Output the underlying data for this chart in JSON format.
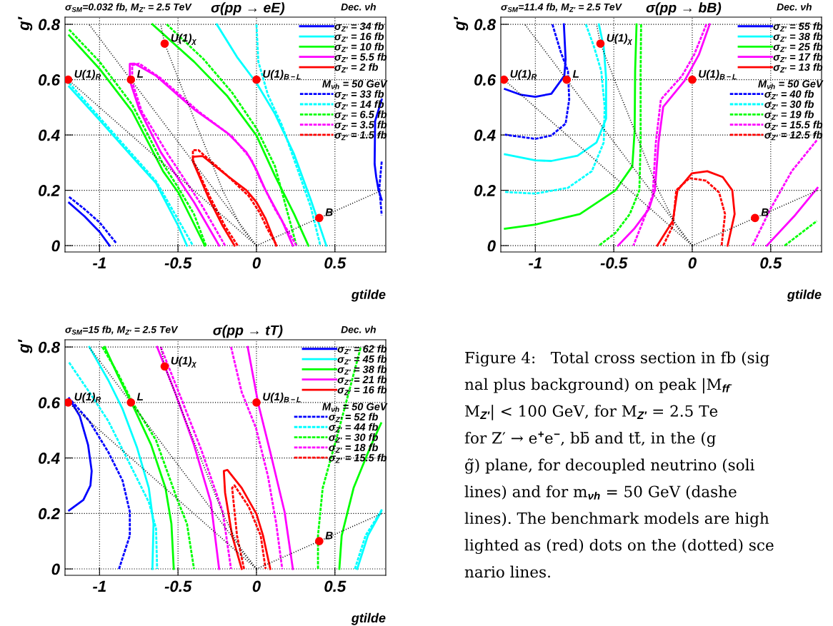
{
  "chart_data": [
    {
      "type": "line",
      "title": "σ(pp → eE)",
      "subtitle": "σ$_{SM}$=0.032 fb, M$_{Z′}$ = 2.5 TeV",
      "xlabel": "gtilde",
      "ylabel": "g′",
      "legend_title": "M$_{νh}$ = 50 GeV",
      "legend": "top right",
      "grid": true,
      "xlim": [
        -1.22,
        0.824
      ],
      "ylim": [
        -0.023,
        0.826
      ],
      "xticks": [
        {
          "value": -1,
          "label": "-1"
        },
        {
          "value": -0.5,
          "label": "-0.5"
        },
        {
          "value": 0,
          "label": "0"
        },
        {
          "value": 0.5,
          "label": "0.5"
        }
      ],
      "yticks": [
        0,
        0.2,
        0.4,
        0.6,
        0.8
      ],
      "annotations": [
        "Dec. νh",
        {
          "text": "U(1)$_{R}$",
          "x": -1.2,
          "y": 0.6
        },
        {
          "text": "L",
          "x": -0.8,
          "y": 0.6
        },
        {
          "text": "U(1)$_{χ}$",
          "x": -0.585,
          "y": 0.73
        },
        {
          "text": "U(1)$_{B−L}$",
          "x": 0,
          "y": 0.6
        },
        {
          "text": "B",
          "x": 0.4,
          "y": 0.1
        }
      ],
      "series": [
        {
          "type": "line",
          "name": "σ$_{Z′}$ = 34 fb",
          "color": "#0000ff",
          "line_style": "solid",
          "x": [
            -1.194,
            -1.096,
            -1.0,
            -0.936,
            null,
            0.798,
            0.756,
            0.753,
            0.763,
            0.778,
            0.798
          ],
          "values": [
            0.155,
            0.106,
            0.05,
            0,
            null,
            0.528,
            0.45,
            0.295,
            0.248,
            0.2,
            0.166
          ]
        },
        {
          "type": "line",
          "name": "σ$_{Z′}$ = 16 fb",
          "color": "#00ffff",
          "line_style": "solid",
          "x": [
            -1.194,
            -1.0,
            -0.792,
            -0.64,
            -0.498,
            -0.443,
            null,
            -0.253,
            -0.124,
            0,
            0.118,
            0.24,
            0.346,
            0.445
          ],
          "values": [
            0.575,
            0.454,
            0.321,
            0.226,
            0.071,
            0,
            null,
            0.8,
            0.682,
            0.588,
            0.476,
            0.33,
            0.166,
            0
          ]
        },
        {
          "type": "line",
          "name": "σ$_{Z′}$ = 10 fb",
          "color": "#00ff00",
          "line_style": "solid",
          "x": [
            -1.194,
            -1.0,
            -0.792,
            -0.595,
            -0.498,
            -0.329,
            null,
            -0.663,
            -0.398,
            -0.185,
            0,
            0.118,
            0.24,
            0.331
          ],
          "values": [
            0.76,
            0.639,
            0.485,
            0.269,
            0.192,
            0,
            null,
            0.8,
            0.665,
            0.54,
            0.398,
            0.252,
            0.114,
            0
          ]
        },
        {
          "type": "line",
          "name": "σ$_{Z′}$ = 5.5 fb",
          "color": "#ff00ff",
          "line_style": "solid",
          "x": [
            -0.238,
            -0.398,
            -0.61,
            -0.747,
            -0.807,
            -0.807,
            -0.777,
            -0.64,
            -0.398,
            -0.185,
            -0.064,
            0,
            0.058,
            0.164,
            0.232
          ],
          "values": [
            0,
            0.157,
            0.338,
            0.493,
            0.596,
            0.657,
            0.658,
            0.614,
            0.493,
            0.407,
            0.338,
            0.274,
            0.2,
            0.089,
            0
          ]
        },
        {
          "type": "line",
          "name": "σ$_{Z′}$ = 2 fb",
          "color": "#ff0000",
          "line_style": "solid",
          "x": [
            -0.14,
            -0.215,
            -0.307,
            -0.405,
            -0.405,
            -0.344,
            -0.185,
            -0.064,
            0,
            0.058,
            0.126
          ],
          "values": [
            0,
            0.071,
            0.175,
            0.304,
            0.321,
            0.324,
            0.252,
            0.2,
            0.157,
            0.097,
            0
          ]
        },
        {
          "type": "line",
          "name": "σ$_{Z′}$ = 33 fb",
          "color": "#0000ff",
          "line_style": "dashed",
          "x": [
            -1.194,
            -1.096,
            -1.0,
            -0.891,
            null,
            0.798,
            0.783,
            0.798
          ],
          "values": [
            0.176,
            0.132,
            0.084,
            0.007,
            null,
            0.304,
            0.209,
            0.11
          ]
        },
        {
          "type": "line",
          "name": "σ$_{Z′}$ = 14 fb",
          "color": "#00ffff",
          "line_style": "dashed",
          "x": [
            -1.194,
            -1.0,
            -0.792,
            -0.64,
            -0.498,
            -0.405,
            null,
            0,
            0.012,
            0.073,
            0.164,
            0.255,
            0.346,
            0.407
          ],
          "values": [
            0.588,
            0.463,
            0.33,
            0.233,
            0.093,
            0,
            null,
            0.8,
            0.665,
            0.545,
            0.433,
            0.287,
            0.14,
            0
          ]
        },
        {
          "type": "line",
          "name": "σ$_{Z′}$ = 6.5 fb",
          "color": "#00ff00",
          "line_style": "dashed",
          "x": [
            -1.194,
            -1.0,
            -0.792,
            -0.595,
            -0.498,
            -0.398,
            -0.322,
            null,
            -0.572,
            -0.337,
            -0.155,
            0,
            0.118,
            0.255
          ],
          "values": [
            0.781,
            0.665,
            0.51,
            0.295,
            0.209,
            0.114,
            0,
            null,
            0.8,
            0.674,
            0.553,
            0.424,
            0.287,
            0
          ]
        },
        {
          "type": "line",
          "name": "σ$_{Z′}$ = 3.5 fb",
          "color": "#ff00ff",
          "line_style": "dashed",
          "x": [
            -0.2,
            -0.352,
            -0.564,
            -0.731,
            -0.792,
            -0.792,
            -0.747,
            -0.61,
            -0.367,
            -0.155,
            -0.033,
            0.027,
            0.118,
            0.255
          ],
          "values": [
            0,
            0.149,
            0.33,
            0.485,
            0.592,
            0.652,
            0.658,
            0.605,
            0.484,
            0.394,
            0.312,
            0.235,
            0.132,
            0
          ]
        },
        {
          "type": "line",
          "name": "σ$_{Z′}$ = 1.5 fb",
          "color": "#ff0000",
          "line_style": "dashed",
          "x": [
            -0.12,
            -0.2,
            -0.3,
            -0.405,
            -0.405,
            -0.37,
            -0.2,
            -0.05,
            0.02,
            0.07,
            0.13
          ],
          "values": [
            0,
            0.07,
            0.18,
            0.31,
            0.345,
            0.345,
            0.26,
            0.18,
            0.12,
            0.06,
            0
          ]
        },
        {
          "type": "line",
          "color": "#000000",
          "line_style": "dotted",
          "x": [
            0,
            -1.2
          ],
          "values": [
            0,
            0.6
          ]
        },
        {
          "type": "line",
          "color": "#000000",
          "line_style": "dotted",
          "x": [
            0,
            -1.067
          ],
          "values": [
            0,
            0.8
          ]
        },
        {
          "type": "line",
          "color": "#000000",
          "line_style": "dotted",
          "x": [
            0,
            -0.094,
            -0.215,
            -0.337,
            -0.458,
            -0.585,
            -0.61
          ],
          "values": [
            0,
            0.063,
            0.2,
            0.373,
            0.545,
            0.73,
            0.8
          ]
        },
        {
          "type": "line",
          "color": "#000000",
          "line_style": "dotted",
          "x": [
            0,
            0.8
          ],
          "values": [
            0,
            0.2
          ]
        },
        {
          "type": "scatter",
          "color": "#ff0000",
          "marker": "circle",
          "x": [
            -1.2,
            -0.8,
            -0.585,
            0,
            0.4
          ],
          "values": [
            0.6,
            0.6,
            0.73,
            0.6,
            0.1
          ]
        }
      ]
    },
    {
      "type": "line",
      "title": "σ(pp → bB)",
      "subtitle": "σ$_{SM}$=11.4 fb, M$_{Z′}$ = 2.5 TeV",
      "xlabel": "gtilde",
      "ylabel": "g′",
      "legend_title": "M$_{νh}$ = 50 GeV",
      "legend": "top right",
      "grid": true,
      "xlim": [
        -1.22,
        0.824
      ],
      "ylim": [
        -0.023,
        0.826
      ],
      "xticks": [
        {
          "value": -1,
          "label": "-1"
        },
        {
          "value": -0.5,
          "label": "-0.5"
        },
        {
          "value": 0,
          "label": "0"
        },
        {
          "value": 0.5,
          "label": "0.5"
        }
      ],
      "yticks": [
        0,
        0.2,
        0.4,
        0.6,
        0.8
      ],
      "annotations": [
        "Dec. νh",
        {
          "text": "U(1)$_{R}$",
          "x": -1.2,
          "y": 0.6
        },
        {
          "text": "L",
          "x": -0.8,
          "y": 0.6
        },
        {
          "text": "U(1)$_{χ}$",
          "x": -0.585,
          "y": 0.73
        },
        {
          "text": "U(1)$_{B−L}$",
          "x": 0,
          "y": 0.6
        },
        {
          "text": "B",
          "x": 0.4,
          "y": 0.1
        }
      ],
      "series": [
        {
          "type": "line",
          "name": "σ$_{Z′}$ = 55 fb",
          "color": "#0000ff",
          "line_style": "solid",
          "x": [
            -0.818,
            -0.807,
            -0.815,
            -0.898,
            -1.0,
            -1.096,
            -1.194
          ],
          "values": [
            0.8,
            0.674,
            0.614,
            0.549,
            0.538,
            0.546,
            0.566
          ]
        },
        {
          "type": "line",
          "name": "σ$_{Z′}$ = 38 fb",
          "color": "#00ffff",
          "line_style": "solid",
          "x": [
            -0.595,
            -0.564,
            -0.549,
            -0.549,
            -0.61,
            -0.731,
            -0.898,
            -1.0,
            -1.194
          ],
          "values": [
            0.8,
            0.717,
            0.605,
            0.459,
            0.373,
            0.325,
            0.306,
            0.308,
            0.33
          ]
        },
        {
          "type": "line",
          "name": "σ$_{Z′}$ = 25 fb",
          "color": "#00ff00",
          "line_style": "solid",
          "x": [
            -0.355,
            -0.364,
            -0.367,
            -0.382,
            -0.489,
            -0.716,
            -1.0,
            -1.194
          ],
          "values": [
            0.8,
            0.631,
            0.416,
            0.287,
            0.2,
            0.114,
            0.076,
            0.061
          ]
        },
        {
          "type": "line",
          "name": "σ$_{Z′}$ = 17 fb",
          "color": "#ff00ff",
          "line_style": "solid",
          "x": [
            0.111,
            0.042,
            -0.049,
            -0.185,
            -0.215,
            -0.238,
            -0.276,
            -0.367,
            -0.473,
            null,
            0.475,
            0.649,
            0.798
          ],
          "values": [
            0.8,
            0.69,
            0.596,
            0.502,
            0.373,
            0.2,
            0.132,
            0.063,
            0,
            null,
            0,
            0.106,
            0.209
          ]
        },
        {
          "type": "line",
          "name": "σ$_{Z′}$ = 13 fb",
          "color": "#ff0000",
          "line_style": "solid",
          "x": [
            -0.223,
            -0.124,
            -0.094,
            -0.003,
            0.096,
            0.194,
            0.255,
            0.27,
            0.225
          ],
          "values": [
            0,
            0.089,
            0.2,
            0.261,
            0.269,
            0.248,
            0.2,
            0.114,
            0
          ]
        },
        {
          "type": "line",
          "name": "σ$_{Z′}$ = 40 fb",
          "color": "#0000ff",
          "line_style": "dashed",
          "x": [
            -0.891,
            -0.838,
            -0.792,
            -0.784,
            -0.807,
            -0.898,
            -1.0,
            -1.194
          ],
          "values": [
            0.8,
            0.7,
            0.631,
            0.528,
            0.441,
            0.398,
            0.386,
            0.401
          ]
        },
        {
          "type": "line",
          "name": "σ$_{Z′}$ = 30 fb",
          "color": "#00ffff",
          "line_style": "dashed",
          "x": [
            -0.678,
            -0.625,
            -0.58,
            -0.558,
            -0.564,
            -0.64,
            -0.792,
            -1.0,
            -1.194
          ],
          "values": [
            0.8,
            0.717,
            0.631,
            0.502,
            0.373,
            0.269,
            0.209,
            0.188,
            0.194
          ]
        },
        {
          "type": "line",
          "name": "σ$_{Z′}$ = 19 fb",
          "color": "#00ff00",
          "line_style": "dashed",
          "x": [
            -0.326,
            -0.329,
            -0.329,
            -0.337,
            -0.398,
            -0.489,
            -0.595,
            null,
            0.589,
            0.695,
            0.794
          ],
          "values": [
            0.8,
            0.631,
            0.373,
            0.2,
            0.114,
            0.046,
            0,
            null,
            0,
            0.046,
            0.089
          ]
        },
        {
          "type": "line",
          "name": "σ$_{Z′}$ = 15.5 fb",
          "color": "#ff00ff",
          "line_style": "dashed",
          "x": [
            0.09,
            0.012,
            -0.065,
            -0.2,
            -0.232,
            -0.252,
            -0.296,
            -0.375,
            null,
            0.384,
            0.498,
            0.634,
            0.794
          ],
          "values": [
            0.8,
            0.69,
            0.614,
            0.528,
            0.373,
            0.183,
            0.114,
            0,
            null,
            0,
            0.132,
            0.269,
            0.381
          ]
        },
        {
          "type": "line",
          "name": "σ$_{Z′}$ = 12.5 fb",
          "color": "#ff0000",
          "line_style": "dashed",
          "x": [
            -0.185,
            -0.124,
            -0.102,
            -0.018,
            0.088,
            0.171,
            0.209,
            0.187
          ],
          "values": [
            0,
            0.071,
            0.2,
            0.244,
            0.235,
            0.192,
            0.114,
            0
          ]
        },
        {
          "type": "line",
          "color": "#000000",
          "line_style": "dotted",
          "x": [
            0,
            -1.2
          ],
          "values": [
            0,
            0.6
          ]
        },
        {
          "type": "line",
          "color": "#000000",
          "line_style": "dotted",
          "x": [
            0,
            -1.067
          ],
          "values": [
            0,
            0.8
          ]
        },
        {
          "type": "line",
          "color": "#000000",
          "line_style": "dotted",
          "x": [
            0,
            -0.094,
            -0.215,
            -0.337,
            -0.458,
            -0.585,
            -0.61
          ],
          "values": [
            0,
            0.063,
            0.2,
            0.373,
            0.545,
            0.73,
            0.8
          ]
        },
        {
          "type": "line",
          "color": "#000000",
          "line_style": "dotted",
          "x": [
            0,
            0.8
          ],
          "values": [
            0,
            0.2
          ]
        },
        {
          "type": "scatter",
          "color": "#ff0000",
          "marker": "circle",
          "x": [
            -1.2,
            -0.8,
            -0.585,
            0,
            0.4
          ],
          "values": [
            0.6,
            0.6,
            0.73,
            0.6,
            0.1
          ]
        }
      ]
    },
    {
      "type": "line",
      "title": "σ(pp → tT)",
      "subtitle": "σ$_{SM}$=15 fb, M$_{Z′}$ = 2.5 TeV",
      "xlabel": "gtilde",
      "ylabel": "g′",
      "legend_title": "M$_{νh}$ = 50 GeV",
      "legend": "top right",
      "grid": true,
      "xlim": [
        -1.22,
        0.824
      ],
      "ylim": [
        -0.023,
        0.826
      ],
      "xticks": [
        {
          "value": -1,
          "label": "-1"
        },
        {
          "value": -0.5,
          "label": "-0.5"
        },
        {
          "value": 0,
          "label": "0"
        },
        {
          "value": 0.5,
          "label": "0.5"
        }
      ],
      "yticks": [
        0,
        0.2,
        0.4,
        0.6,
        0.8
      ],
      "annotations": [
        "Dec. νh",
        {
          "text": "U(1)$_{R}$",
          "x": -1.2,
          "y": 0.6
        },
        {
          "text": "L",
          "x": -0.8,
          "y": 0.6
        },
        {
          "text": "U(1)$_{χ}$",
          "x": -0.585,
          "y": 0.73
        },
        {
          "text": "U(1)$_{B−L}$",
          "x": 0,
          "y": 0.6
        },
        {
          "text": "B",
          "x": 0.4,
          "y": 0.1
        }
      ],
      "series": [
        {
          "type": "line",
          "name": "σ$_{Z′}$ = 62 fb",
          "color": "#0000ff",
          "line_style": "solid",
          "x": [
            -1.194,
            -1.126,
            -1.073,
            -1.05,
            -1.058,
            -1.103,
            -1.194
          ],
          "values": [
            0.615,
            0.551,
            0.447,
            0.353,
            0.301,
            0.249,
            0.211
          ]
        },
        {
          "type": "line",
          "name": "σ$_{Z′}$ = 45 fb",
          "color": "#00ffff",
          "line_style": "solid",
          "x": [
            -1.065,
            -0.944,
            -0.853,
            -0.762,
            -0.686,
            -0.656,
            -0.663,
            null,
            0.642,
            0.71,
            0.794
          ],
          "values": [
            0.8,
            0.68,
            0.576,
            0.439,
            0.292,
            0.163,
            0,
            null,
            0,
            0.12,
            0.206
          ]
        },
        {
          "type": "line",
          "name": "σ$_{Z′}$ = 38 fb",
          "color": "#00ff00",
          "line_style": "solid",
          "x": [
            -0.967,
            -0.883,
            -0.792,
            -0.671,
            -0.58,
            -0.542,
            -0.527,
            null,
            0.528,
            0.543,
            0.619,
            0.725,
            0.794
          ],
          "values": [
            0.8,
            0.697,
            0.594,
            0.447,
            0.292,
            0.163,
            0,
            null,
            0,
            0.12,
            0.292,
            0.439,
            0.525
          ]
        },
        {
          "type": "line",
          "name": "σ$_{Z′}$ = 21 fb",
          "color": "#ff00ff",
          "line_style": "solid",
          "x": [
            -0.633,
            -0.519,
            -0.398,
            -0.291,
            -0.238,
            null,
            -0.056,
            0.012,
            0.088,
            0.179,
            0.232
          ],
          "values": [
            0.8,
            0.637,
            0.447,
            0.241,
            0,
            null,
            0.8,
            0.594,
            0.421,
            0.206,
            0
          ]
        },
        {
          "type": "line",
          "name": "σ$_{Z′}$ = 16 fb",
          "color": "#ff0000",
          "line_style": "solid",
          "x": [
            -0.094,
            -0.155,
            -0.2,
            -0.208,
            -0.185,
            -0.094,
            0,
            0.042,
            0.088
          ],
          "values": [
            0,
            0.12,
            0.275,
            0.353,
            0.357,
            0.292,
            0.198,
            0.12,
            0
          ]
        },
        {
          "type": "line",
          "name": "σ$_{Z′}$ = 52 fb",
          "color": "#0000ff",
          "line_style": "dashed",
          "x": [
            -1.179,
            -1.065,
            -0.944,
            -0.853,
            -0.807,
            -0.807,
            -0.876
          ],
          "values": [
            0.606,
            0.533,
            0.421,
            0.318,
            0.206,
            0.12,
            0
          ]
        },
        {
          "type": "line",
          "name": "σ$_{Z′}$ = 44 fb",
          "color": "#00ffff",
          "line_style": "dashed",
          "x": [
            -1.194,
            -1.065,
            -0.944,
            -0.807,
            -0.686,
            -0.64,
            -0.633,
            null,
            0.627,
            0.695,
            0.801
          ],
          "values": [
            0.744,
            0.637,
            0.533,
            0.378,
            0.241,
            0.146,
            0,
            null,
            0,
            0.12,
            0.215
          ]
        },
        {
          "type": "line",
          "name": "σ$_{Z′}$ = 30 fb",
          "color": "#00ff00",
          "line_style": "dashed",
          "x": [
            -0.982,
            -0.883,
            -0.792,
            -0.64,
            -0.504,
            -0.443,
            -0.398,
            null,
            0.392,
            0.392,
            0.422,
            0.528,
            0.665
          ],
          "values": [
            0.8,
            0.705,
            0.602,
            0.464,
            0.249,
            0.163,
            0,
            null,
            0,
            0.12,
            0.292,
            0.508,
            0.8
          ]
        },
        {
          "type": "line",
          "name": "σ$_{Z′}$ = 18 fb",
          "color": "#ff00ff",
          "line_style": "dashed",
          "x": [
            -0.61,
            -0.489,
            -0.352,
            -0.215,
            -0.162,
            null,
            -0.162,
            -0.094,
            -0.003,
            0.073,
            0.126,
            0.164
          ],
          "values": [
            0.8,
            0.628,
            0.43,
            0.206,
            0,
            null,
            0.8,
            0.637,
            0.508,
            0.335,
            0.163,
            0
          ]
        },
        {
          "type": "line",
          "name": "σ$_{Z′}$ = 15.5 fb",
          "color": "#ff0000",
          "line_style": "dashed",
          "x": [
            -0.079,
            -0.124,
            -0.155,
            -0.14,
            -0.049,
            0.027,
            0.058
          ],
          "values": [
            0,
            0.12,
            0.292,
            0.301,
            0.224,
            0.12,
            0
          ]
        },
        {
          "type": "line",
          "color": "#000000",
          "line_style": "dotted",
          "x": [
            0,
            -1.2
          ],
          "values": [
            0,
            0.6
          ]
        },
        {
          "type": "line",
          "color": "#000000",
          "line_style": "dotted",
          "x": [
            0,
            -1.067
          ],
          "values": [
            0,
            0.8
          ]
        },
        {
          "type": "line",
          "color": "#000000",
          "line_style": "dotted",
          "x": [
            0,
            -0.094,
            -0.215,
            -0.337,
            -0.458,
            -0.585,
            -0.61
          ],
          "values": [
            0,
            0.063,
            0.2,
            0.373,
            0.545,
            0.73,
            0.8
          ]
        },
        {
          "type": "line",
          "color": "#000000",
          "line_style": "dotted",
          "x": [
            0,
            0.8
          ],
          "values": [
            0,
            0.2
          ]
        },
        {
          "type": "scatter",
          "color": "#ff0000",
          "marker": "circle",
          "x": [
            -1.2,
            -0.8,
            -0.585,
            0,
            0.4
          ],
          "values": [
            0.6,
            0.6,
            0.73,
            0.6,
            0.1
          ]
        }
      ]
    },
    {
      "type": "other",
      "annotations": [
        "Figure 4:   Total cross section in fb (sig",
        "nal plus background) on peak |M$_{ff̄}$",
        "M$_{Z′}$| < 100 GeV, for M$_{Z′}$ = 2.5 Te",
        "for Z′ → e$^{+}$e$^{−}$, bb̄ and tt̄, in the (g",
        "g̃) plane, for decoupled neutrino (soli",
        "lines) and for m$_{νh}$ = 50 GeV (dashe",
        "lines). The benchmark models are high",
        "lighted as (red) dots on the (dotted) sce",
        "nario lines."
      ]
    }
  ]
}
